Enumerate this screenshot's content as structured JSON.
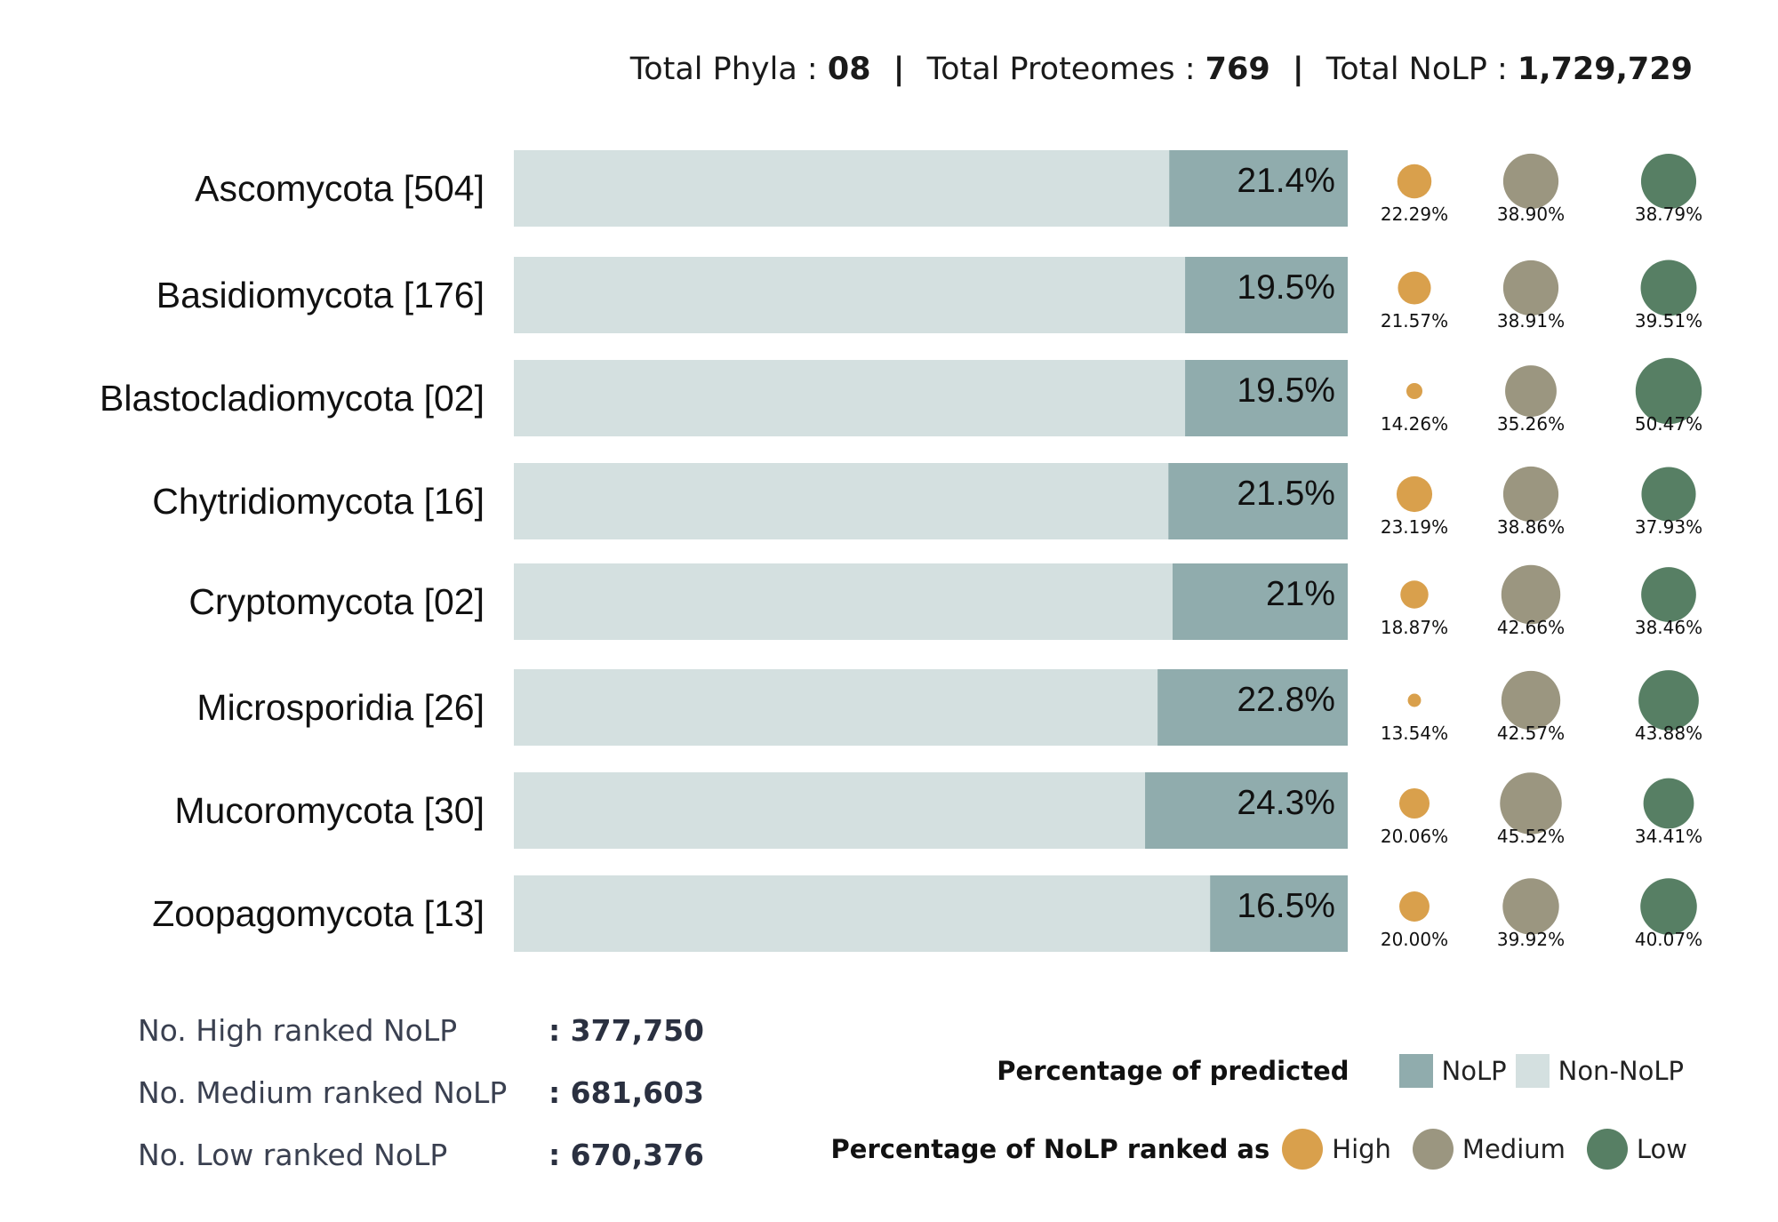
{
  "header": {
    "phyla_label": "Total Phyla :",
    "phyla_value": "08",
    "proteomes_label": "Total Proteomes :",
    "proteomes_value": "769",
    "nolp_label": "Total NoLP :",
    "nolp_value": "1,729,729",
    "separator": "|"
  },
  "colors": {
    "nolp": "#90acad",
    "non_nolp": "#d4e0e0",
    "high": "#d9a04c",
    "medium": "#9b9680",
    "low": "#577f64"
  },
  "chart_data": {
    "type": "bar",
    "orientation": "horizontal-stacked-100",
    "categories": [
      "Ascomycota [504]",
      "Basidiomycota [176]",
      "Blastocladiomycota [02]",
      "Chytridiomycota [16]",
      "Cryptomycota [02]",
      "Microsporidia [26]",
      "Mucoromycota [30]",
      "Zoopagomycota [13]"
    ],
    "nolp_percent": [
      21.4,
      19.5,
      19.5,
      21.5,
      21,
      22.8,
      24.3,
      16.5
    ],
    "nolp_labels": [
      "21.4%",
      "19.5%",
      "19.5%",
      "21.5%",
      "21%",
      "22.8%",
      "24.3%",
      "16.5%"
    ],
    "ranked": {
      "high": [
        "22.29%",
        "21.57%",
        "14.26%",
        "23.19%",
        "18.87%",
        "13.54%",
        "20.06%",
        "20.00%"
      ],
      "medium": [
        "38.90%",
        "38.91%",
        "35.26%",
        "38.86%",
        "42.66%",
        "42.57%",
        "45.52%",
        "39.92%"
      ],
      "low": [
        "38.79%",
        "39.51%",
        "50.47%",
        "37.93%",
        "38.46%",
        "43.88%",
        "34.41%",
        "40.07%"
      ]
    },
    "xlim": [
      0,
      100
    ]
  },
  "stats": [
    {
      "label": "No. High ranked NoLP",
      "value": ": 377,750"
    },
    {
      "label": "No. Medium ranked NoLP",
      "value": ": 681,603"
    },
    {
      "label": "No. Low ranked NoLP",
      "value": ": 670,376"
    }
  ],
  "legend": {
    "predicted_title": "Percentage of predicted",
    "nolp": "NoLP",
    "non_nolp": "Non-NoLP",
    "ranked_title": "Percentage of NoLP ranked as",
    "high": "High",
    "medium": "Medium",
    "low": "Low"
  }
}
